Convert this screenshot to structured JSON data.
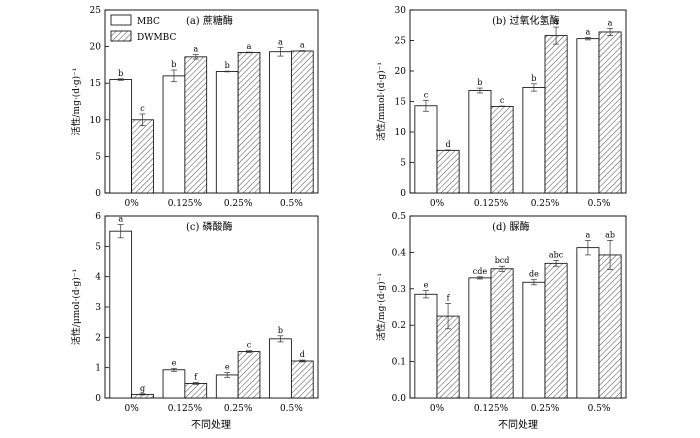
{
  "figure": {
    "x_axis_label": "不同处理",
    "legend": {
      "placement": "top-left",
      "series": [
        "MBC",
        "DWMBC"
      ]
    }
  },
  "chart_data": [
    {
      "type": "bar",
      "title": "(a) 蔗糖酶",
      "ylabel": "活性/mg·(d·g)⁻¹",
      "xlabel": "",
      "ylim": [
        0,
        25
      ],
      "yticks": [
        0,
        5,
        10,
        15,
        20,
        25
      ],
      "categories": [
        "0%",
        "0.125%",
        "0.25%",
        "0.5%"
      ],
      "series": [
        {
          "name": "MBC",
          "values": [
            15.5,
            16.0,
            16.6,
            19.3
          ],
          "errors": [
            0.1,
            0.8,
            0.05,
            0.6
          ],
          "labels": [
            "b",
            "b",
            "b",
            "a"
          ]
        },
        {
          "name": "DWMBC",
          "values": [
            10.0,
            18.6,
            19.2,
            19.4
          ],
          "errors": [
            0.8,
            0.3,
            0.05,
            0.05
          ],
          "labels": [
            "c",
            "a",
            "a",
            "a"
          ]
        }
      ]
    },
    {
      "type": "bar",
      "title": "(b) 过氧化氢酶",
      "ylabel": "活性/mmol·(d·g)⁻¹",
      "xlabel": "",
      "ylim": [
        0,
        30
      ],
      "yticks": [
        0,
        5,
        10,
        15,
        20,
        25,
        30
      ],
      "categories": [
        "0%",
        "0.125%",
        "0.25%",
        "0.5%"
      ],
      "series": [
        {
          "name": "MBC",
          "values": [
            14.3,
            16.8,
            17.3,
            25.3
          ],
          "errors": [
            0.9,
            0.4,
            0.6,
            0.2
          ],
          "labels": [
            "c",
            "b",
            "b",
            "a"
          ]
        },
        {
          "name": "DWMBC",
          "values": [
            7.0,
            14.2,
            25.8,
            26.4
          ],
          "errors": [
            0.05,
            0.05,
            1.4,
            0.6
          ],
          "labels": [
            "d",
            "c",
            "a",
            "a"
          ]
        }
      ]
    },
    {
      "type": "bar",
      "title": "(c) 磷酸酶",
      "ylabel": "活性/μmol·(d·g)⁻¹",
      "xlabel": "",
      "ylim": [
        0,
        6
      ],
      "yticks": [
        0,
        1,
        2,
        3,
        4,
        5,
        6
      ],
      "categories": [
        "0%",
        "0.125%",
        "0.25%",
        "0.5%"
      ],
      "series": [
        {
          "name": "MBC",
          "values": [
            5.5,
            0.93,
            0.76,
            1.95
          ],
          "errors": [
            0.22,
            0.05,
            0.08,
            0.1
          ],
          "labels": [
            "a",
            "e",
            "e",
            "b"
          ]
        },
        {
          "name": "DWMBC",
          "values": [
            0.12,
            0.48,
            1.53,
            1.22
          ],
          "errors": [
            0.02,
            0.03,
            0.03,
            0.03
          ],
          "labels": [
            "g",
            "f",
            "c",
            "d"
          ]
        }
      ]
    },
    {
      "type": "bar",
      "title": "(d) 脲酶",
      "ylabel": "活性/mg·(d·g)⁻¹",
      "xlabel": "",
      "ylim": [
        0,
        0.5
      ],
      "yticks": [
        0.0,
        0.1,
        0.2,
        0.3,
        0.4,
        0.5
      ],
      "categories": [
        "0%",
        "0.125%",
        "0.25%",
        "0.5%"
      ],
      "series": [
        {
          "name": "MBC",
          "values": [
            0.285,
            0.33,
            0.318,
            0.413
          ],
          "errors": [
            0.01,
            0.003,
            0.007,
            0.02
          ],
          "labels": [
            "e",
            "cde",
            "de",
            "a"
          ]
        },
        {
          "name": "DWMBC",
          "values": [
            0.225,
            0.355,
            0.37,
            0.393
          ],
          "errors": [
            0.035,
            0.007,
            0.008,
            0.04
          ],
          "labels": [
            "f",
            "bcd",
            "abc",
            "ab"
          ]
        }
      ]
    }
  ]
}
